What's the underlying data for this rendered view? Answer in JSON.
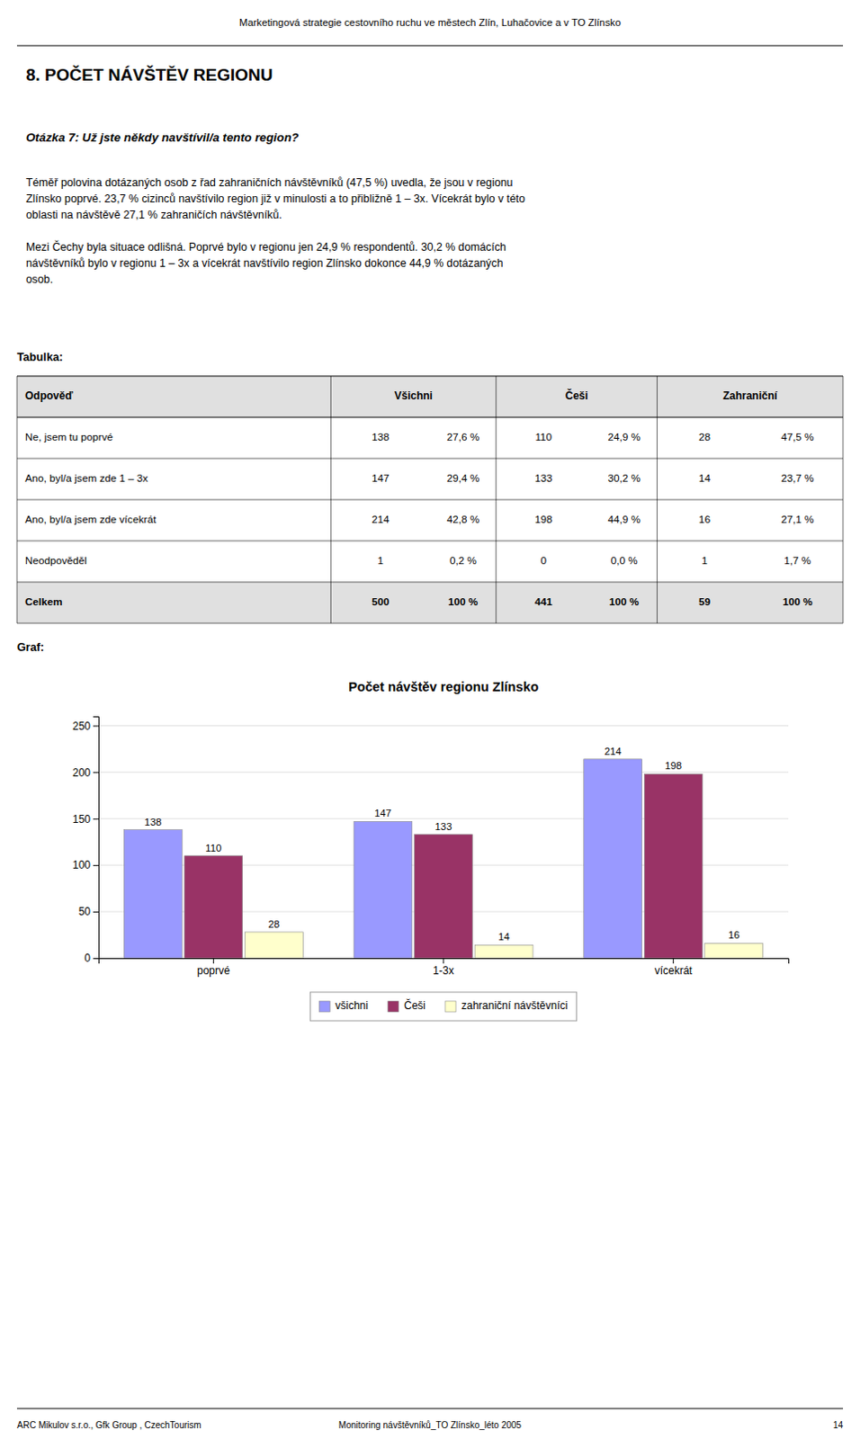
{
  "header_text": "Marketingová strategie cestovního ruchu ve městech Zlín, Luhačovice a v TO Zlínsko",
  "section_title": "8.  POČET NÁVŠTĚV REGIONU",
  "question": "Otázka 7: Už jste někdy navštívil/a tento region?",
  "body_text": [
    [
      "Téměř polovina dotázaných osob z řad zahraničních návštěvníků (47,5 %) uvedla, že jsou v regionu",
      "Zlínsko poprvé. 23,7 % cizinců navštívilo region již v minulosti a to přibližně 1 – 3x. Vícekrát bylo v této",
      "oblasti na návštěvě 27,1 % zahraničích návštěvníků."
    ],
    [
      "Mezi Čechy byla situace odlišná. Poprvé bylo v regionu jen 24,9 % respondentů. 30,2 % domácích",
      "návštěvníků bylo v regionu 1 – 3x a vícekrát navštívilo region Zlínsko dokonce 44,9 % dotázaných",
      "osob."
    ]
  ],
  "tabulka_label": "Tabulka:",
  "table": {
    "header": [
      "Odpověď",
      "Všichni",
      "Češi",
      "Zahraniční"
    ],
    "rows": [
      [
        "Ne, jsem tu poprvé",
        "138",
        "27,6 %",
        "110",
        "24,9 %",
        "28",
        "47,5 %"
      ],
      [
        "Ano, byl/a jsem zde 1 – 3x",
        "147",
        "29,4 %",
        "133",
        "30,2 %",
        "14",
        "23,7 %"
      ],
      [
        "Ano, byl/a jsem zde vícekrát",
        "214",
        "42,8 %",
        "198",
        "44,9 %",
        "16",
        "27,1 %"
      ],
      [
        "Neodpověděl",
        "1",
        "0,2 %",
        "0",
        "0,0 %",
        "1",
        "1,7 %"
      ],
      [
        "Celkem",
        "500",
        "100 %",
        "441",
        "100 %",
        "59",
        "100 %"
      ]
    ]
  },
  "graf_label": "Graf:",
  "chart_data": {
    "type": "bar",
    "title": "Počet návštěv regionu Zlínsko",
    "categories": [
      "poprvé",
      "1-3x",
      "vícekrát"
    ],
    "series": [
      {
        "name": "všichni",
        "color": "#9999FF",
        "values": [
          138,
          147,
          214
        ]
      },
      {
        "name": "Češi",
        "color": "#993366",
        "values": [
          110,
          133,
          198
        ]
      },
      {
        "name": "zahraniční návštěvníci",
        "color": "#FFFFCC",
        "values": [
          28,
          14,
          16
        ]
      }
    ],
    "ylim": [
      0,
      260
    ],
    "yticks": [
      0,
      50,
      100,
      150,
      200,
      250
    ],
    "grid": true,
    "legend": "bottom",
    "data_labels": true
  },
  "footer_left": "ARC Mikulov s.r.o.,  Gfk Group ,  CzechTourism",
  "footer_center": "Monitoring návštěvníků_TO Zlínsko_léto 2005",
  "footer_right": "14"
}
